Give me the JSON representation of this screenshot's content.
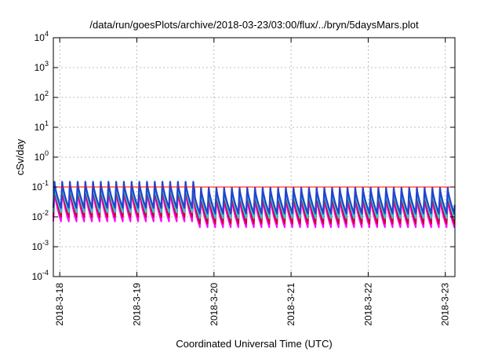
{
  "chart_data": {
    "type": "line",
    "title": "/data/run/goesPlots/archive/2018-03-23/03:00/flux/../bryn/5daysMars.plot",
    "xlabel": "Coordinated Universal Time (UTC)",
    "ylabel": "cSv/day",
    "yscale": "log",
    "ylim_exponents": [
      -4,
      4
    ],
    "y_ticks": [
      {
        "base": "10",
        "exp": "-4"
      },
      {
        "base": "10",
        "exp": "-3"
      },
      {
        "base": "10",
        "exp": "-2"
      },
      {
        "base": "10",
        "exp": "-1"
      },
      {
        "base": "10",
        "exp": "0"
      },
      {
        "base": "10",
        "exp": "1"
      },
      {
        "base": "10",
        "exp": "2"
      },
      {
        "base": "10",
        "exp": "3"
      },
      {
        "base": "10",
        "exp": "4"
      }
    ],
    "x_ticks": [
      "2018-3-18",
      "2018-3-19",
      "2018-3-20",
      "2018-3-21",
      "2018-3-22",
      "2018-3-23"
    ],
    "xlim": [
      "2018-03-17 22:00",
      "2018-03-23 03:00"
    ],
    "grid": true,
    "reference_line": {
      "value": 0.1,
      "color": "#ff0000"
    },
    "oscillation_cycles_per_day": 10,
    "series": [
      {
        "color": "#ff00ff",
        "peak": 0.045,
        "trough": 0.0045,
        "peak_day1": 0.08,
        "trough_day1": 0.007
      },
      {
        "color": "#cc0033",
        "peak": 0.06,
        "trough": 0.006,
        "peak_day1": 0.1,
        "trough_day1": 0.01
      },
      {
        "color": "#33cccc",
        "peak": 0.075,
        "trough": 0.009,
        "peak_day1": 0.12,
        "trough_day1": 0.014
      },
      {
        "color": "#2244cc",
        "peak": 0.095,
        "trough": 0.013,
        "peak_day1": 0.15,
        "trough_day1": 0.02
      }
    ]
  }
}
